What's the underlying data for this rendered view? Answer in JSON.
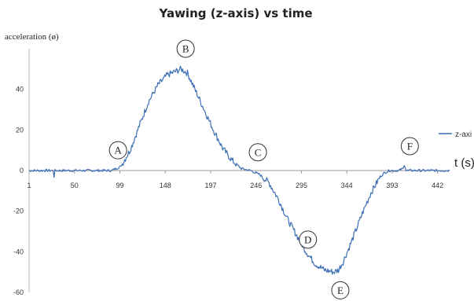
{
  "chart_data": {
    "type": "line",
    "title": "Yawing (z-axis) vs time",
    "ylabel": "acceleration (ø)",
    "xlabel": "t (s)",
    "xlim": [
      1,
      455
    ],
    "ylim": [
      -60,
      60
    ],
    "x_ticks": [
      "1",
      "50",
      "99",
      "148",
      "197",
      "246",
      "295",
      "344",
      "393",
      "442"
    ],
    "y_ticks": [
      "40",
      "20",
      "0",
      "-20",
      "-40",
      "-60"
    ],
    "grid": false,
    "legend": {
      "position": "right",
      "entries": [
        "z-axi"
      ]
    },
    "series": [
      {
        "name": "z-axi",
        "color": "#3d6fb5",
        "x": [
          1,
          20,
          27,
          28,
          29,
          40,
          70,
          90,
          100,
          110,
          120,
          130,
          140,
          150,
          160,
          165,
          172,
          180,
          190,
          200,
          210,
          220,
          230,
          240,
          250,
          260,
          270,
          280,
          290,
          300,
          310,
          320,
          330,
          335,
          340,
          350,
          360,
          370,
          380,
          385,
          390,
          400,
          405,
          406,
          408,
          415,
          430,
          455
        ],
        "y": [
          0,
          0,
          0,
          -3,
          0,
          0,
          0,
          0,
          2,
          10,
          22,
          34,
          42,
          47,
          49,
          50,
          48,
          40,
          30,
          20,
          11,
          5,
          1,
          0,
          -2,
          -6,
          -14,
          -24,
          -32,
          -40,
          -46,
          -49,
          -50,
          -49,
          -45,
          -34,
          -22,
          -11,
          -3,
          -1,
          0,
          0,
          1,
          4,
          0,
          0,
          0,
          0
        ]
      }
    ],
    "annotations": [
      {
        "label": "A",
        "x": 97,
        "y": 10
      },
      {
        "label": "B",
        "x": 170,
        "y": 60
      },
      {
        "label": "C",
        "x": 248,
        "y": 9
      },
      {
        "label": "D",
        "x": 302,
        "y": -34
      },
      {
        "label": "E",
        "x": 337,
        "y": -59
      },
      {
        "label": "F",
        "x": 412,
        "y": 12
      }
    ]
  }
}
